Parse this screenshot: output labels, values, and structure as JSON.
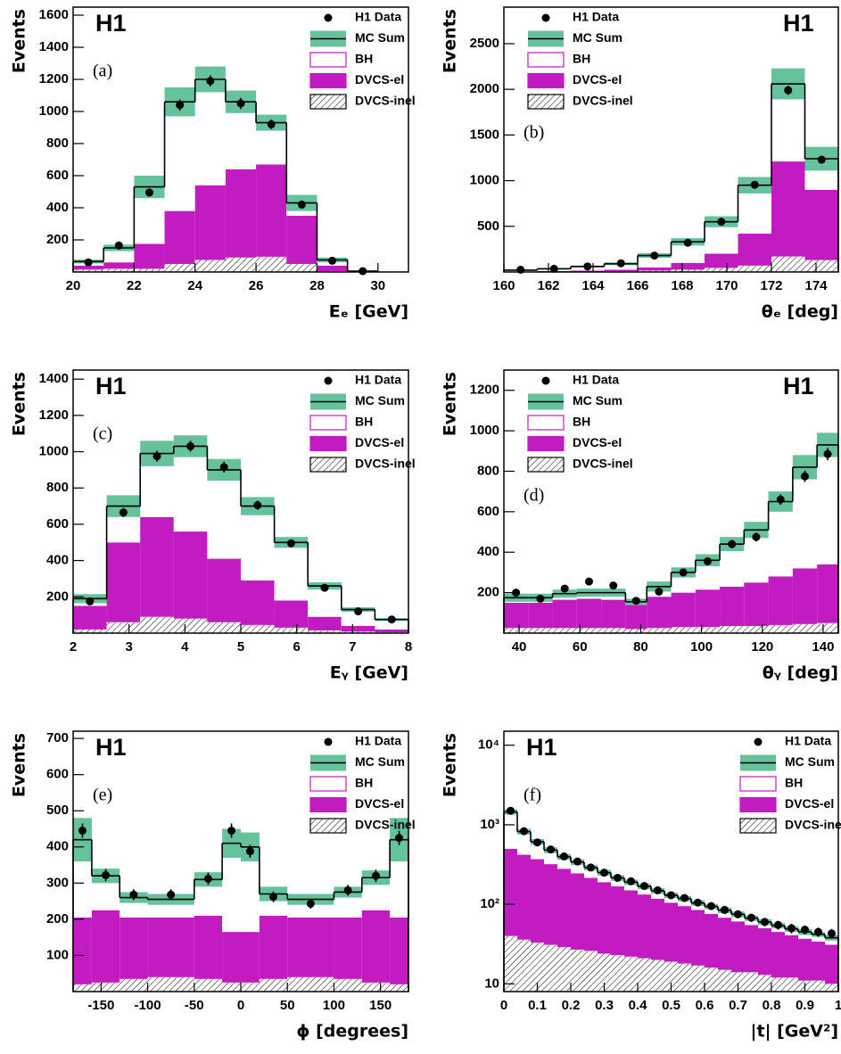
{
  "chart_data": [
    {
      "type": "histogram",
      "label": "H1",
      "tag": "(a)",
      "ylabel": "Events",
      "xlabel": "Eₑ [GeV]",
      "legend": "upper right",
      "bins": [
        20,
        21,
        22,
        23,
        24,
        25,
        26,
        27,
        28,
        29,
        30
      ],
      "xlim": [
        20,
        31
      ],
      "xticks": [
        20,
        22,
        24,
        26,
        28,
        30
      ],
      "ylim": [
        0,
        1650
      ],
      "yticks": [
        200,
        400,
        600,
        800,
        1000,
        1200,
        1400,
        1600
      ],
      "series": [
        {
          "name": "H1 Data",
          "color": "#000000",
          "values": [
            60,
            165,
            495,
            1040,
            1190,
            1050,
            920,
            420,
            70,
            5
          ],
          "errors": [
            10,
            15,
            25,
            35,
            35,
            35,
            30,
            20,
            10,
            3
          ]
        },
        {
          "name": "MC Sum",
          "color": "#66c29b",
          "values": [
            65,
            150,
            530,
            1060,
            1200,
            1060,
            930,
            430,
            75,
            5
          ],
          "errors": [
            12,
            20,
            70,
            90,
            80,
            70,
            50,
            50,
            15,
            2
          ]
        },
        {
          "name": "BH",
          "color": "#c21bc2",
          "values": [
            25,
            90,
            355,
            680,
            660,
            420,
            260,
            80,
            35,
            2
          ]
        },
        {
          "name": "DVCS-el",
          "color": "#c21bc2",
          "values": [
            25,
            40,
            155,
            330,
            465,
            550,
            575,
            300,
            35,
            3
          ]
        },
        {
          "name": "DVCS-inel",
          "color": "#000000",
          "values": [
            15,
            20,
            20,
            50,
            75,
            90,
            95,
            50,
            5,
            0
          ]
        }
      ]
    },
    {
      "type": "histogram",
      "label": "H1",
      "tag": "(b)",
      "ylabel": "Events",
      "xlabel": "θₑ [deg]",
      "legend": "upper left",
      "bins": [
        160,
        161.5,
        163,
        164.5,
        166,
        167.5,
        169,
        170.5,
        172,
        173.5,
        175
      ],
      "xlim": [
        160,
        175
      ],
      "xticks": [
        160,
        162,
        164,
        166,
        168,
        170,
        172,
        174
      ],
      "ylim": [
        0,
        2900
      ],
      "yticks": [
        500,
        1000,
        1500,
        2000,
        2500
      ],
      "series": [
        {
          "name": "H1 Data",
          "color": "#000000",
          "values": [
            25,
            35,
            60,
            95,
            180,
            320,
            550,
            955,
            1990,
            1230
          ],
          "errors": [
            6,
            7,
            9,
            11,
            15,
            20,
            25,
            35,
            50,
            40
          ]
        },
        {
          "name": "MC Sum",
          "color": "#66c29b",
          "values": [
            20,
            35,
            60,
            90,
            180,
            330,
            550,
            950,
            2060,
            1240
          ],
          "errors": [
            5,
            8,
            10,
            15,
            25,
            40,
            60,
            90,
            170,
            130
          ]
        },
        {
          "name": "BH",
          "color": "#c21bc2",
          "values": [
            15,
            25,
            45,
            65,
            130,
            230,
            350,
            530,
            850,
            340
          ]
        },
        {
          "name": "DVCS-el",
          "color": "#c21bc2",
          "values": [
            3,
            7,
            10,
            17,
            35,
            75,
            155,
            350,
            1040,
            770
          ]
        },
        {
          "name": "DVCS-inel",
          "color": "#000000",
          "values": [
            2,
            3,
            5,
            8,
            15,
            25,
            45,
            70,
            170,
            130
          ]
        }
      ]
    },
    {
      "type": "histogram",
      "label": "H1",
      "tag": "(c)",
      "ylabel": "Events",
      "xlabel": "Eᵧ [GeV]",
      "legend": "upper right",
      "bins": [
        2,
        2.6,
        3.2,
        3.8,
        4.4,
        5,
        5.6,
        6.2,
        6.8,
        7.4,
        8
      ],
      "xlim": [
        2,
        8
      ],
      "xticks": [
        2,
        3,
        4,
        5,
        6,
        7,
        8
      ],
      "ylim": [
        0,
        1450
      ],
      "yticks": [
        200,
        400,
        600,
        800,
        1000,
        1200,
        1400
      ],
      "series": [
        {
          "name": "H1 Data",
          "color": "#000000",
          "values": [
            175,
            665,
            975,
            1030,
            915,
            705,
            495,
            250,
            120,
            75
          ],
          "errors": [
            15,
            25,
            30,
            30,
            30,
            25,
            20,
            15,
            12,
            8
          ]
        },
        {
          "name": "MC Sum",
          "color": "#66c29b",
          "values": [
            190,
            700,
            990,
            1030,
            900,
            700,
            500,
            260,
            130,
            75
          ],
          "errors": [
            25,
            60,
            70,
            60,
            60,
            50,
            30,
            20,
            12,
            8
          ]
        },
        {
          "name": "BH",
          "color": "#c21bc2",
          "values": [
            40,
            200,
            350,
            470,
            490,
            410,
            320,
            170,
            90,
            55
          ]
        },
        {
          "name": "DVCS-el",
          "color": "#c21bc2",
          "values": [
            130,
            440,
            550,
            480,
            350,
            245,
            150,
            75,
            32,
            15
          ]
        },
        {
          "name": "DVCS-inel",
          "color": "#000000",
          "values": [
            20,
            60,
            90,
            80,
            60,
            45,
            30,
            15,
            8,
            5
          ]
        }
      ]
    },
    {
      "type": "histogram",
      "label": "H1",
      "tag": "(d)",
      "ylabel": "Events",
      "xlabel": "θᵧ [deg]",
      "legend": "upper left",
      "bins": [
        35,
        43,
        51,
        59,
        67,
        75,
        82,
        90,
        98,
        106,
        114,
        122,
        130,
        138,
        145
      ],
      "xlim": [
        35,
        145
      ],
      "xticks": [
        40,
        60,
        80,
        100,
        120,
        140
      ],
      "ylim": [
        0,
        1300
      ],
      "yticks": [
        200,
        400,
        600,
        800,
        1000,
        1200
      ],
      "series": [
        {
          "name": "H1 Data",
          "color": "#000000",
          "values": [
            200,
            170,
            220,
            255,
            235,
            160,
            205,
            300,
            355,
            440,
            475,
            660,
            775,
            885
          ],
          "errors": [
            15,
            13,
            15,
            16,
            15,
            13,
            15,
            17,
            19,
            21,
            22,
            26,
            28,
            30
          ]
        },
        {
          "name": "MC Sum",
          "color": "#66c29b",
          "values": [
            175,
            175,
            195,
            200,
            200,
            155,
            230,
            300,
            360,
            440,
            510,
            650,
            820,
            930
          ],
          "errors": [
            20,
            20,
            20,
            20,
            20,
            15,
            25,
            25,
            30,
            35,
            40,
            50,
            60,
            60
          ]
        },
        {
          "name": "BH",
          "color": "#c21bc2",
          "values": [
            25,
            25,
            30,
            30,
            35,
            15,
            50,
            100,
            145,
            210,
            260,
            370,
            500,
            590
          ]
        },
        {
          "name": "DVCS-el",
          "color": "#c21bc2",
          "values": [
            125,
            125,
            140,
            145,
            140,
            120,
            155,
            170,
            185,
            195,
            215,
            240,
            275,
            290
          ]
        },
        {
          "name": "DVCS-inel",
          "color": "#000000",
          "values": [
            25,
            25,
            25,
            25,
            25,
            20,
            25,
            30,
            30,
            35,
            35,
            40,
            45,
            50
          ]
        }
      ]
    },
    {
      "type": "histogram",
      "label": "H1",
      "tag": "(e)",
      "ylabel": "Events",
      "xlabel": "ϕ [degrees]",
      "legend": "upper right",
      "bins": [
        -180,
        -160,
        -130,
        -100,
        -50,
        -20,
        0,
        20,
        50,
        100,
        130,
        160,
        180
      ],
      "xlim": [
        -180,
        180
      ],
      "xticks": [
        -150,
        -100,
        -50,
        0,
        50,
        100,
        150
      ],
      "ylim": [
        0,
        720
      ],
      "yticks": [
        100,
        200,
        300,
        400,
        500,
        600,
        700
      ],
      "series": [
        {
          "name": "H1 Data",
          "color": "#000000",
          "values": [
            445,
            322,
            268,
            268,
            312,
            445,
            388,
            262,
            243,
            280,
            320,
            425
          ],
          "errors": [
            20,
            17,
            15,
            15,
            17,
            20,
            18,
            15,
            14,
            15,
            17,
            20
          ]
        },
        {
          "name": "MC Sum",
          "color": "#66c29b",
          "values": [
            420,
            320,
            260,
            255,
            310,
            410,
            400,
            270,
            255,
            275,
            315,
            420
          ],
          "errors": [
            60,
            20,
            15,
            15,
            20,
            40,
            40,
            20,
            15,
            15,
            20,
            60
          ]
        },
        {
          "name": "BH",
          "color": "#c21bc2",
          "values": [
            215,
            95,
            55,
            50,
            100,
            245,
            235,
            60,
            50,
            70,
            90,
            215
          ]
        },
        {
          "name": "DVCS-el",
          "color": "#c21bc2",
          "values": [
            185,
            200,
            170,
            165,
            175,
            140,
            140,
            175,
            165,
            170,
            200,
            185
          ]
        },
        {
          "name": "DVCS-inel",
          "color": "#000000",
          "values": [
            20,
            25,
            35,
            40,
            35,
            25,
            25,
            35,
            40,
            35,
            25,
            20
          ]
        }
      ]
    },
    {
      "type": "histogram",
      "label": "H1",
      "tag": "(f)",
      "ylabel": "Events",
      "xlabel": "|t| [GeV²]",
      "legend": "upper right",
      "log_y": true,
      "bins": [
        0,
        0.04,
        0.08,
        0.12,
        0.16,
        0.2,
        0.24,
        0.28,
        0.32,
        0.36,
        0.4,
        0.44,
        0.48,
        0.52,
        0.56,
        0.6,
        0.64,
        0.68,
        0.72,
        0.76,
        0.8,
        0.84,
        0.88,
        0.92,
        0.96,
        1
      ],
      "xlim": [
        0,
        1
      ],
      "xticks": [
        0,
        0.1,
        0.2,
        0.3,
        0.4,
        0.5,
        0.6,
        0.7,
        0.8,
        0.9,
        1
      ],
      "ylim": [
        8,
        15000
      ],
      "yticks": [
        10,
        {
          "value": 100,
          "label": "10²"
        },
        {
          "value": 1000,
          "label": "10³"
        },
        {
          "value": 10000,
          "label": "10⁴"
        }
      ],
      "series": [
        {
          "name": "H1 Data",
          "color": "#000000",
          "values": [
            1500,
            830,
            600,
            490,
            400,
            345,
            290,
            250,
            215,
            195,
            170,
            150,
            130,
            120,
            105,
            95,
            85,
            75,
            68,
            60,
            55,
            50,
            48,
            45,
            43
          ],
          "errors": [
            40,
            30,
            25,
            22,
            20,
            18,
            16,
            15,
            14,
            13,
            12,
            12,
            11,
            10,
            10,
            9,
            9,
            8,
            8,
            7,
            7,
            7,
            6,
            6,
            6
          ]
        },
        {
          "name": "MC Sum",
          "color": "#66c29b",
          "values": [
            1450,
            820,
            610,
            480,
            395,
            340,
            290,
            250,
            215,
            190,
            168,
            148,
            130,
            118,
            104,
            94,
            84,
            75,
            67,
            60,
            54,
            49,
            45,
            42,
            38
          ],
          "errors": [
            110,
            65,
            50,
            40,
            32,
            27,
            23,
            20,
            17,
            15,
            13,
            12,
            10,
            9,
            8,
            7,
            7,
            6,
            5,
            5,
            4,
            4,
            4,
            3,
            3
          ]
        },
        {
          "name": "BH",
          "color": "#c21bc2",
          "values": [
            950,
            400,
            240,
            160,
            115,
            95,
            75,
            60,
            47,
            40,
            35,
            30,
            25,
            23,
            19,
            18,
            16,
            14,
            12,
            10,
            9,
            8,
            8,
            8,
            7
          ]
        },
        {
          "name": "DVCS-el",
          "color": "#c21bc2",
          "values": [
            460,
            384,
            337,
            289,
            251,
            218,
            189,
            166,
            145,
            128,
            112,
            98,
            86,
            77,
            68,
            60,
            53,
            47,
            41,
            37,
            33,
            29,
            26,
            23,
            21
          ]
        },
        {
          "name": "DVCS-inel",
          "color": "#000000",
          "values": [
            40,
            36,
            33,
            31,
            29,
            27,
            26,
            24,
            23,
            22,
            21,
            20,
            19,
            18,
            17,
            16,
            15,
            14,
            14,
            13,
            12,
            12,
            11,
            11,
            10
          ]
        }
      ]
    }
  ]
}
